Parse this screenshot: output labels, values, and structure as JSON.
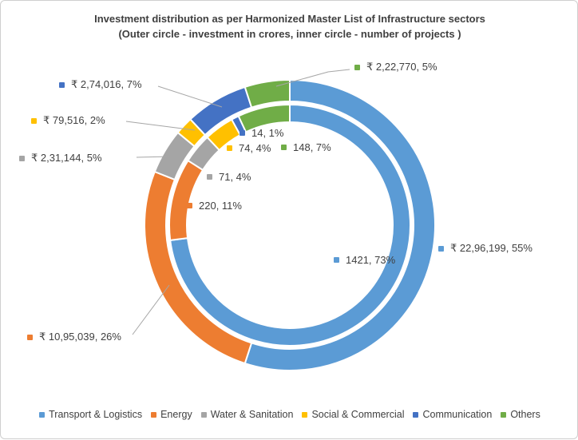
{
  "title": "Investment distribution  as per Harmonized Master List of Infrastructure  sectors",
  "subtitle": "(Outer circle - investment in crores, inner circle - number of projects )",
  "chart_data": {
    "type": "donut",
    "rings": 2,
    "categories": [
      "Transport & Logistics",
      "Energy",
      "Water & Sanitation",
      "Social & Commercial",
      "Communication",
      "Others"
    ],
    "colors": [
      "#5B9BD5",
      "#ED7D31",
      "#A5A5A5",
      "#FFC000",
      "#4472C4",
      "#70AD47"
    ],
    "outer_ring": {
      "label": "investment in crores",
      "currency": "₹",
      "values": [
        2296199,
        1095039,
        231144,
        79516,
        274016,
        222770
      ],
      "percents": [
        55,
        26,
        5,
        2,
        7,
        5
      ]
    },
    "inner_ring": {
      "label": "number of projects",
      "values": [
        1421,
        220,
        71,
        74,
        14,
        148
      ],
      "percents": [
        73,
        11,
        4,
        4,
        1,
        7
      ]
    },
    "legend_position": "bottom",
    "callouts": [
      {
        "text": "₹ 2,22,770, 5%",
        "color": "#70AD47",
        "ring": "outer",
        "category": "Others"
      },
      {
        "text": "₹ 2,74,016, 7%",
        "color": "#4472C4",
        "ring": "outer",
        "category": "Communication"
      },
      {
        "text": "₹ 79,516, 2%",
        "color": "#FFC000",
        "ring": "outer",
        "category": "Social & Commercial"
      },
      {
        "text": "₹ 2,31,144, 5%",
        "color": "#A5A5A5",
        "ring": "outer",
        "category": "Water & Sanitation"
      },
      {
        "text": "₹ 10,95,039, 26%",
        "color": "#ED7D31",
        "ring": "outer",
        "category": "Energy"
      },
      {
        "text": "₹ 22,96,199, 55%",
        "color": "#5B9BD5",
        "ring": "outer",
        "category": "Transport & Logistics"
      },
      {
        "text": "14, 1%",
        "color": "#4472C4",
        "ring": "inner",
        "category": "Communication"
      },
      {
        "text": "74, 4%",
        "color": "#FFC000",
        "ring": "inner",
        "category": "Social & Commercial"
      },
      {
        "text": "148, 7%",
        "color": "#70AD47",
        "ring": "inner",
        "category": "Others"
      },
      {
        "text": "71, 4%",
        "color": "#A5A5A5",
        "ring": "inner",
        "category": "Water & Sanitation"
      },
      {
        "text": "220, 11%",
        "color": "#ED7D31",
        "ring": "inner",
        "category": "Energy"
      },
      {
        "text": "1421, 73%",
        "color": "#5B9BD5",
        "ring": "inner",
        "category": "Transport & Logistics"
      }
    ],
    "legend": [
      {
        "label": "Transport & Logistics",
        "color": "#5B9BD5"
      },
      {
        "label": "Energy",
        "color": "#ED7D31"
      },
      {
        "label": "Water & Sanitation",
        "color": "#A5A5A5"
      },
      {
        "label": "Social & Commercial",
        "color": "#FFC000"
      },
      {
        "label": "Communication",
        "color": "#4472C4"
      },
      {
        "label": "Others",
        "color": "#70AD47"
      }
    ]
  }
}
